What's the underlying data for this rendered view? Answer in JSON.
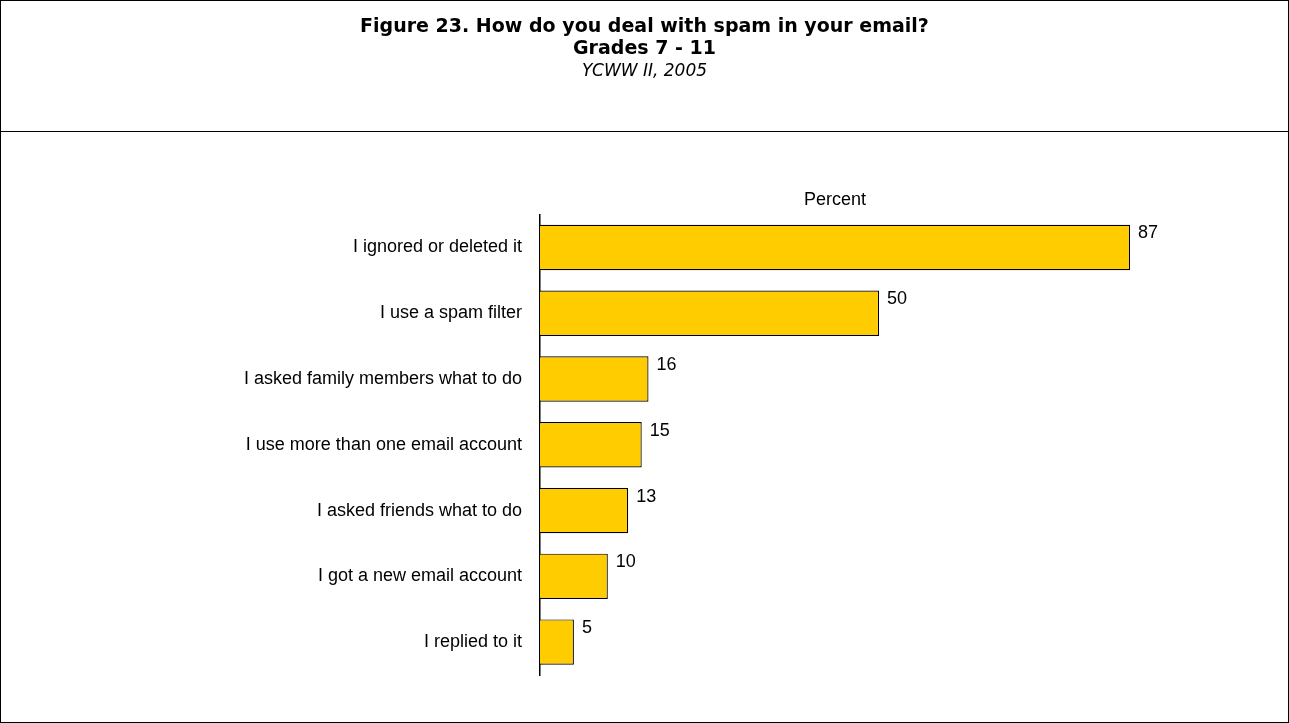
{
  "chart_data": {
    "type": "bar",
    "orientation": "horizontal",
    "title": "Figure 23. How do you deal with spam in your email?",
    "subtitle": "Grades 7 - 11",
    "annotations": [
      "YCWW II, 2005"
    ],
    "xlabel": "Percent",
    "categories": [
      "I ignored or deleted it",
      "I use a spam filter",
      "I asked family members what to do",
      "I use more than one email account",
      "I asked friends what to do",
      "I got a new email account",
      "I replied to it"
    ],
    "values": [
      87,
      50,
      16,
      15,
      13,
      10,
      5
    ],
    "color": "#ffcc00",
    "tick_labels": "y",
    "data_labels": true,
    "grid": false,
    "legend": false
  }
}
